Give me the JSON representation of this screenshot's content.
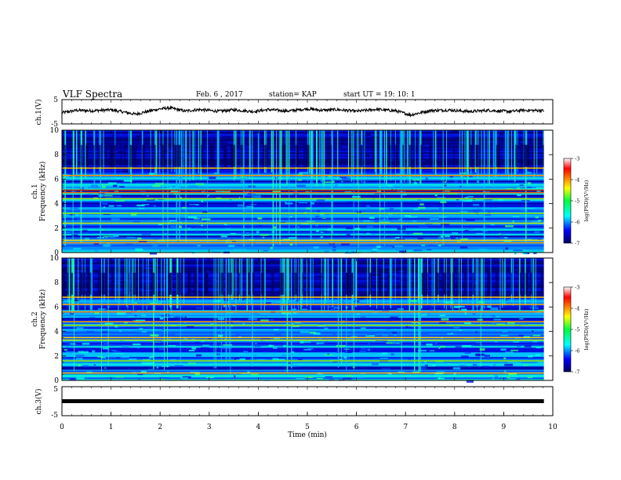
{
  "header": {
    "title": "VLF Spectra",
    "date": "Feb. 6  , 2017",
    "station": "station= KAP",
    "start_time": "start  UT =   19: 10: 1"
  },
  "chart_data": [
    {
      "id": "ch1-waveform",
      "type": "line",
      "ylabel": "ch.1(V)",
      "ylim": [
        -5,
        5
      ],
      "yticks": [
        "5",
        "-5"
      ],
      "xlim": [
        0,
        9.82
      ],
      "samples": [
        {
          "x": 0.0,
          "y": -0.4
        },
        {
          "x": 0.3,
          "y": 0.6
        },
        {
          "x": 0.6,
          "y": 0.4
        },
        {
          "x": 1.0,
          "y": 0.8
        },
        {
          "x": 1.2,
          "y": 0.1
        },
        {
          "x": 1.5,
          "y": -1.0
        },
        {
          "x": 1.8,
          "y": 0.4
        },
        {
          "x": 2.0,
          "y": 1.2
        },
        {
          "x": 2.2,
          "y": 1.6
        },
        {
          "x": 2.5,
          "y": 0.3
        },
        {
          "x": 2.8,
          "y": 0.9
        },
        {
          "x": 3.2,
          "y": 0.2
        },
        {
          "x": 3.5,
          "y": 0.8
        },
        {
          "x": 3.9,
          "y": 0.1
        },
        {
          "x": 4.2,
          "y": 0.9
        },
        {
          "x": 4.6,
          "y": 0.3
        },
        {
          "x": 5.0,
          "y": 1.2
        },
        {
          "x": 5.3,
          "y": 0.6
        },
        {
          "x": 5.6,
          "y": 0.9
        },
        {
          "x": 6.0,
          "y": 0.2
        },
        {
          "x": 6.4,
          "y": 1.0
        },
        {
          "x": 6.8,
          "y": 0.4
        },
        {
          "x": 7.1,
          "y": -1.3
        },
        {
          "x": 7.5,
          "y": 0.5
        },
        {
          "x": 7.9,
          "y": 0.7
        },
        {
          "x": 8.3,
          "y": 0.1
        },
        {
          "x": 8.7,
          "y": 0.6
        },
        {
          "x": 9.1,
          "y": 0.1
        },
        {
          "x": 9.4,
          "y": 0.6
        },
        {
          "x": 9.82,
          "y": 0.5
        }
      ]
    },
    {
      "id": "ch1-spectrogram",
      "type": "heatmap",
      "ylabel_top": "ch.1",
      "ylabel": "Frequency (kHz)",
      "ylim": [
        0,
        10
      ],
      "yticks": [
        "0",
        "2",
        "4",
        "6",
        "8",
        "10"
      ],
      "xlim": [
        0,
        9.82
      ],
      "upper_band_start_khz": 6.6,
      "lines_khz": [
        {
          "f": 0.8,
          "color": "#ff8a00"
        },
        {
          "f": 1.0,
          "color": "#ffdd00"
        },
        {
          "f": 2.4,
          "color": "#c8e000"
        },
        {
          "f": 3.2,
          "color": "#90e000"
        },
        {
          "f": 4.4,
          "color": "#b0e000"
        },
        {
          "f": 4.9,
          "color": "#ff6a00"
        },
        {
          "f": 5.1,
          "color": "#c03000"
        },
        {
          "f": 6.3,
          "color": "#ff9000"
        },
        {
          "f": 6.9,
          "color": "#ffd000"
        }
      ],
      "colorbar": {
        "label": "log(PSD)(V²/Hz)",
        "range": [
          -7,
          -3
        ],
        "ticks": [
          "-3",
          "-4",
          "-5",
          "-6",
          "-7"
        ]
      }
    },
    {
      "id": "ch2-spectrogram",
      "type": "heatmap",
      "ylabel_top": "ch.2",
      "ylabel": "Frequency (kHz)",
      "ylim": [
        0,
        10
      ],
      "yticks": [
        "0",
        "2",
        "4",
        "6",
        "8",
        "10"
      ],
      "xlim": [
        0,
        9.82
      ],
      "upper_band_start_khz": 6.6,
      "lines_khz": [
        {
          "f": 0.6,
          "color": "#ffe000"
        },
        {
          "f": 1.6,
          "color": "#90e000"
        },
        {
          "f": 3.3,
          "color": "#c8e000"
        },
        {
          "f": 3.5,
          "color": "#ffdd00"
        },
        {
          "f": 4.5,
          "color": "#a0e000"
        },
        {
          "f": 4.8,
          "color": "#ff7a00"
        },
        {
          "f": 5.6,
          "color": "#ff8a00"
        },
        {
          "f": 6.2,
          "color": "#ffa000"
        },
        {
          "f": 6.8,
          "color": "#ffd000"
        }
      ],
      "colorbar": {
        "label": "log(PSD)(V²/Hz)",
        "range": [
          -7,
          -3
        ],
        "ticks": [
          "-3",
          "-4",
          "-5",
          "-6",
          "-7"
        ]
      }
    },
    {
      "id": "ch3-waveform",
      "type": "line",
      "ylabel": "ch.3(V)",
      "ylim": [
        -5,
        5
      ],
      "yticks": [
        "5",
        "-5"
      ],
      "xlim": [
        0,
        9.82
      ],
      "samples": [
        {
          "x": 0.0,
          "y": 0.0
        },
        {
          "x": 9.82,
          "y": 0.0
        }
      ]
    }
  ],
  "x_axis": {
    "label": "Time  (min)",
    "range": [
      0,
      10
    ],
    "ticks": [
      "0",
      "1",
      "2",
      "3",
      "4",
      "5",
      "6",
      "7",
      "8",
      "9",
      "10"
    ]
  },
  "colors": {
    "spec_low": "#000080",
    "spec_mid": "#0030ff",
    "spec_cyan": "#00e8ff",
    "spec_green": "#40ff40",
    "spec_yellow": "#ffff00",
    "spec_red": "#ff0000"
  }
}
